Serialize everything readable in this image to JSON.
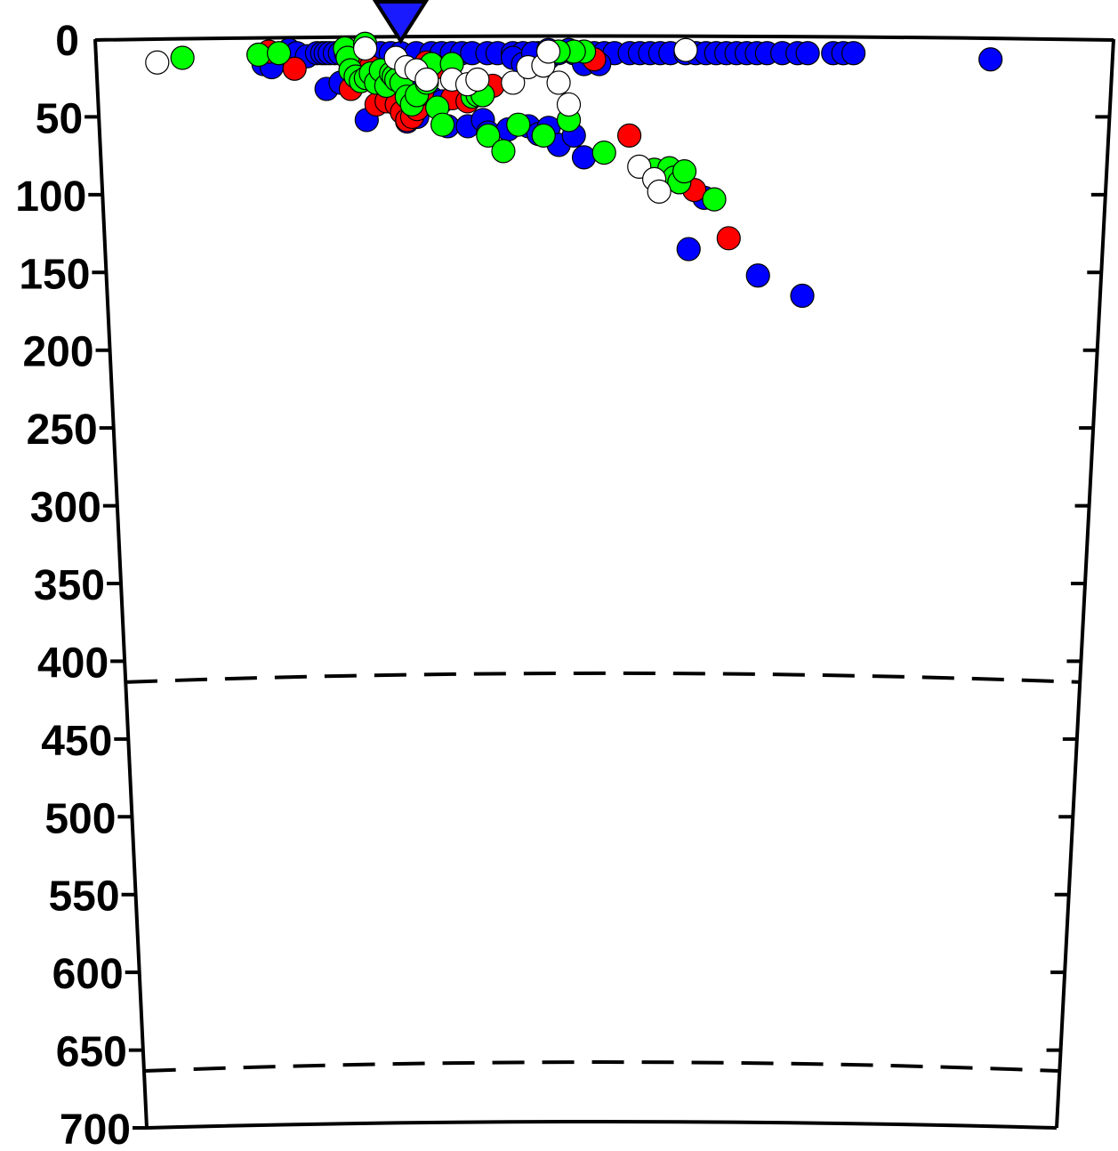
{
  "chart_data": {
    "type": "scatter",
    "title": "",
    "xlabel": "",
    "ylabel": "",
    "ylim": [
      0,
      700
    ],
    "y_inverted": true,
    "grid": false,
    "legend": "none",
    "y_ticks": [
      0,
      50,
      100,
      150,
      200,
      250,
      300,
      350,
      400,
      450,
      500,
      550,
      600,
      650,
      700
    ],
    "reference_lines_depth": [
      410,
      660
    ],
    "station_marker": {
      "shape": "inverted-triangle",
      "color": "#1a1aff",
      "depth": 0
    },
    "marker_colors": {
      "blue": "#0000ff",
      "red": "#ff0000",
      "green": "#00ff00",
      "open": "#ffffff",
      "outline": "#000000"
    },
    "series": [
      {
        "color": "#0000ff",
        "points": [
          [
            -0.68,
            10
          ],
          [
            -0.671,
            16
          ],
          [
            -0.655,
            18
          ],
          [
            -0.62,
            7
          ],
          [
            -0.605,
            9
          ],
          [
            -0.585,
            11
          ],
          [
            -0.565,
            9
          ],
          [
            -0.555,
            9
          ],
          [
            -0.548,
            9
          ],
          [
            -0.54,
            9
          ],
          [
            -0.53,
            9
          ],
          [
            -0.52,
            9
          ],
          [
            -0.508,
            9
          ],
          [
            -0.497,
            9
          ],
          [
            -0.548,
            32
          ],
          [
            -0.52,
            28
          ],
          [
            -0.47,
            52
          ],
          [
            -0.44,
            9
          ],
          [
            -0.42,
            9
          ],
          [
            -0.4,
            9
          ],
          [
            -0.37,
            9
          ],
          [
            -0.34,
            9
          ],
          [
            -0.32,
            9
          ],
          [
            -0.3,
            9
          ],
          [
            -0.28,
            9
          ],
          [
            -0.26,
            9
          ],
          [
            -0.23,
            9
          ],
          [
            -0.21,
            9
          ],
          [
            -0.18,
            9
          ],
          [
            -0.16,
            9
          ],
          [
            -0.13,
            9
          ],
          [
            -0.11,
            12
          ],
          [
            -0.09,
            9
          ],
          [
            -0.06,
            9
          ],
          [
            -0.04,
            9
          ],
          [
            -0.02,
            9
          ],
          [
            0.0,
            9
          ],
          [
            0.02,
            9
          ],
          [
            0.05,
            9
          ],
          [
            0.07,
            9
          ],
          [
            0.09,
            9
          ],
          [
            0.11,
            9
          ],
          [
            0.13,
            9
          ],
          [
            0.16,
            9
          ],
          [
            0.18,
            9
          ],
          [
            0.2,
            9
          ],
          [
            0.22,
            9
          ],
          [
            0.24,
            9
          ],
          [
            0.26,
            9
          ],
          [
            0.28,
            9
          ],
          [
            0.3,
            9
          ],
          [
            0.32,
            9
          ],
          [
            0.35,
            9
          ],
          [
            0.38,
            9
          ],
          [
            0.4,
            9
          ],
          [
            0.45,
            9
          ],
          [
            0.47,
            9
          ],
          [
            0.49,
            9
          ],
          [
            -0.39,
            53
          ],
          [
            -0.37,
            50
          ],
          [
            -0.31,
            56
          ],
          [
            -0.27,
            56
          ],
          [
            -0.24,
            52
          ],
          [
            -0.23,
            60
          ],
          [
            -0.19,
            58
          ],
          [
            -0.15,
            56
          ],
          [
            -0.13,
            61
          ],
          [
            -0.11,
            57
          ],
          [
            -0.09,
            68
          ],
          [
            -0.06,
            62
          ],
          [
            -0.04,
            76
          ],
          [
            -0.18,
            12
          ],
          [
            -0.16,
            16
          ],
          [
            -0.14,
            9
          ],
          [
            -0.11,
            7
          ],
          [
            -0.07,
            7
          ],
          [
            -0.04,
            16
          ],
          [
            -0.01,
            16
          ],
          [
            0.2,
            102
          ],
          [
            0.17,
            135
          ],
          [
            0.31,
            152
          ],
          [
            0.4,
            165
          ],
          [
            0.76,
            13
          ],
          [
            -0.45,
            20
          ],
          [
            -0.43,
            24
          ],
          [
            -0.41,
            30
          ],
          [
            -0.39,
            27
          ],
          [
            -0.36,
            35
          ],
          [
            -0.34,
            38
          ],
          [
            -0.32,
            40
          ]
        ]
      },
      {
        "color": "#ff0000",
        "points": [
          [
            -0.66,
            8
          ],
          [
            -0.61,
            19
          ],
          [
            -0.5,
            32
          ],
          [
            -0.49,
            8
          ],
          [
            -0.48,
            12
          ],
          [
            -0.47,
            22
          ],
          [
            -0.46,
            18
          ],
          [
            -0.45,
            42
          ],
          [
            -0.43,
            40
          ],
          [
            -0.41,
            42
          ],
          [
            -0.4,
            47
          ],
          [
            -0.39,
            52
          ],
          [
            -0.38,
            50
          ],
          [
            -0.37,
            45
          ],
          [
            -0.36,
            35
          ],
          [
            -0.35,
            15
          ],
          [
            -0.33,
            18
          ],
          [
            -0.3,
            38
          ],
          [
            -0.27,
            40
          ],
          [
            -0.24,
            36
          ],
          [
            -0.22,
            30
          ],
          [
            -0.02,
            13
          ],
          [
            0.05,
            62
          ],
          [
            0.13,
            88
          ],
          [
            0.15,
            92
          ],
          [
            0.18,
            97
          ],
          [
            0.25,
            128
          ]
        ]
      },
      {
        "color": "#00ff00",
        "points": [
          [
            -0.83,
            12
          ],
          [
            -0.68,
            10
          ],
          [
            -0.64,
            9
          ],
          [
            -0.51,
            6
          ],
          [
            -0.505,
            12
          ],
          [
            -0.5,
            20
          ],
          [
            -0.49,
            24
          ],
          [
            -0.48,
            27
          ],
          [
            -0.47,
            25
          ],
          [
            -0.46,
            22
          ],
          [
            -0.45,
            28
          ],
          [
            -0.44,
            20
          ],
          [
            -0.43,
            30
          ],
          [
            -0.42,
            22
          ],
          [
            -0.415,
            24
          ],
          [
            -0.41,
            26
          ],
          [
            -0.4,
            28
          ],
          [
            -0.39,
            37
          ],
          [
            -0.38,
            42
          ],
          [
            -0.37,
            36
          ],
          [
            -0.36,
            20
          ],
          [
            -0.35,
            28
          ],
          [
            -0.34,
            16
          ],
          [
            -0.33,
            44
          ],
          [
            -0.32,
            55
          ],
          [
            -0.3,
            16
          ],
          [
            -0.26,
            37
          ],
          [
            -0.25,
            36
          ],
          [
            -0.24,
            36
          ],
          [
            -0.23,
            62
          ],
          [
            -0.2,
            72
          ],
          [
            -0.17,
            55
          ],
          [
            -0.12,
            62
          ],
          [
            -0.07,
            52
          ],
          [
            -0.04,
            8
          ],
          [
            -0.06,
            8
          ],
          [
            -0.09,
            8
          ],
          [
            0.0,
            73
          ],
          [
            0.1,
            84
          ],
          [
            0.13,
            83
          ],
          [
            0.14,
            89
          ],
          [
            0.15,
            92
          ],
          [
            0.16,
            85
          ],
          [
            0.22,
            103
          ],
          [
            -0.47,
            3
          ]
        ]
      },
      {
        "color": "#ffffff",
        "points": [
          [
            -0.88,
            15
          ],
          [
            -0.47,
            6
          ],
          [
            -0.41,
            12
          ],
          [
            -0.39,
            18
          ],
          [
            -0.37,
            20
          ],
          [
            -0.35,
            26
          ],
          [
            -0.3,
            26
          ],
          [
            -0.27,
            29
          ],
          [
            -0.25,
            26
          ],
          [
            -0.18,
            28
          ],
          [
            -0.15,
            18
          ],
          [
            -0.12,
            17
          ],
          [
            -0.09,
            28
          ],
          [
            -0.07,
            42
          ],
          [
            -0.11,
            8
          ],
          [
            0.07,
            82
          ],
          [
            0.1,
            90
          ],
          [
            0.11,
            98
          ],
          [
            0.16,
            7
          ]
        ]
      }
    ]
  }
}
